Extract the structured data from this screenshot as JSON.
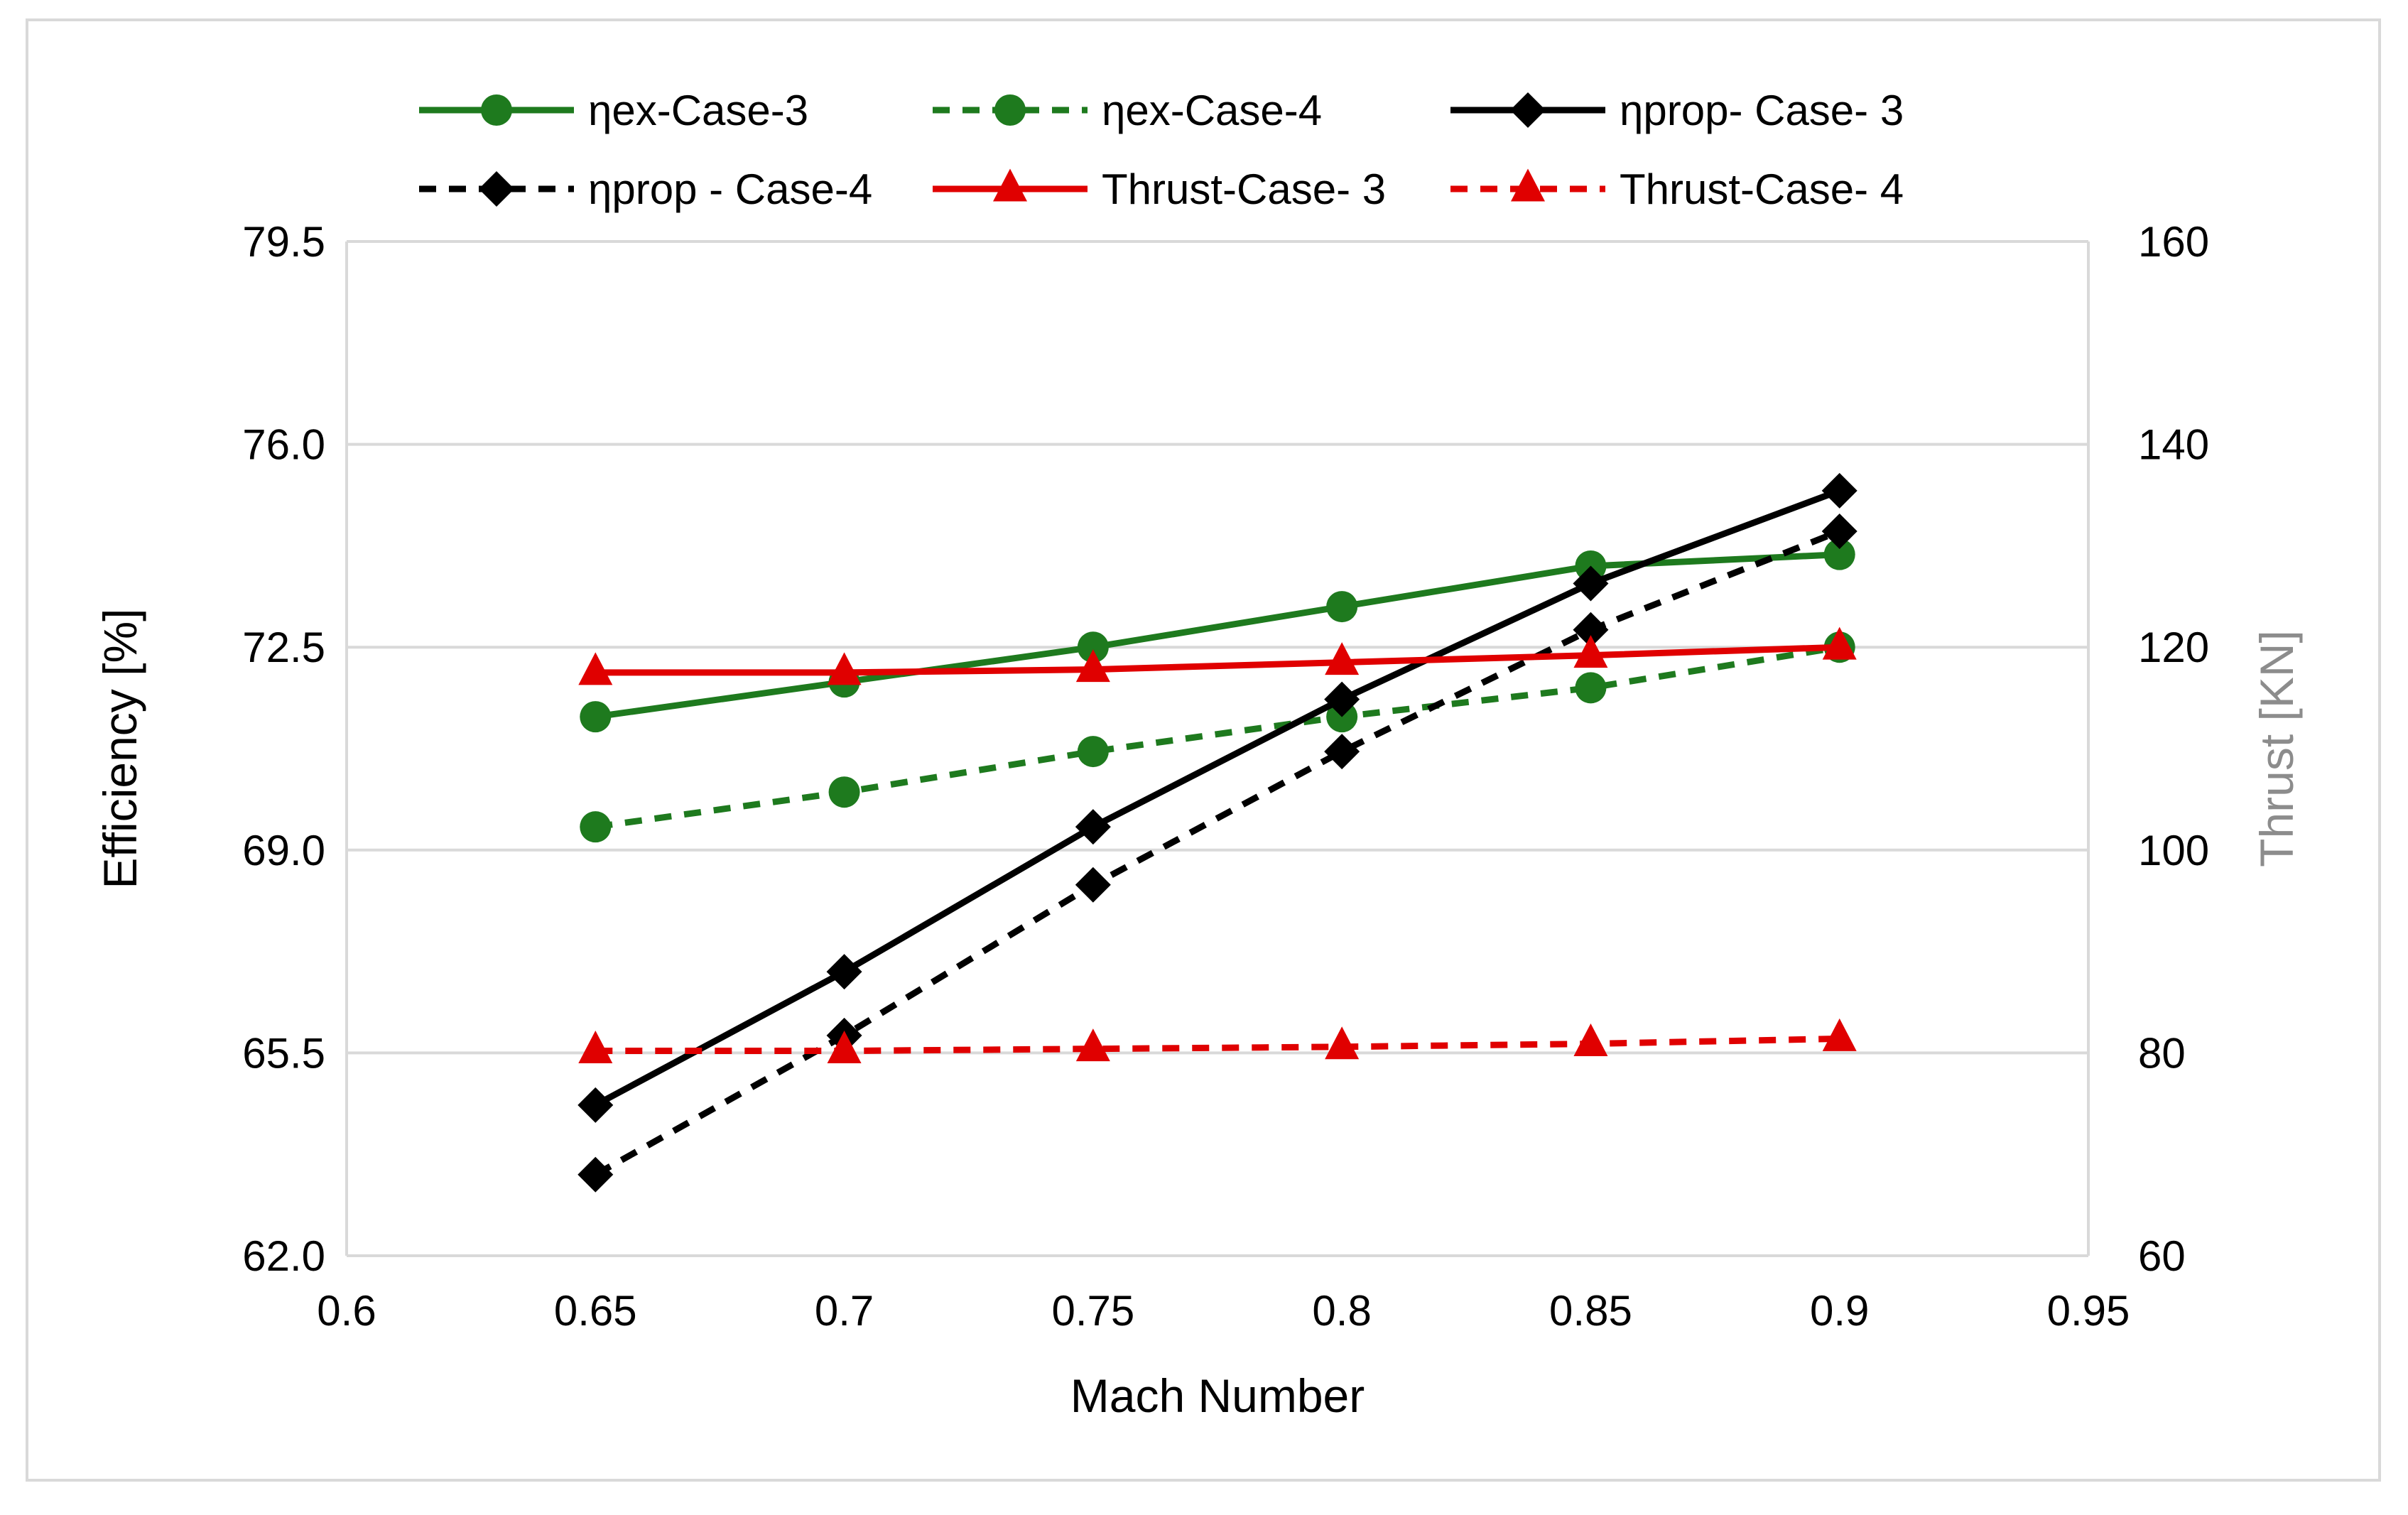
{
  "chart_data": {
    "type": "line",
    "title": "",
    "xlabel": "Mach Number",
    "ylabel": "Efficiency [%]",
    "y2label": "Thrust [KN]",
    "xlim": [
      0.6,
      0.95
    ],
    "ylim": [
      62.0,
      79.5
    ],
    "y2lim": [
      60,
      160
    ],
    "xticks": [
      "0.6",
      "0.65",
      "0.7",
      "0.75",
      "0.8",
      "0.85",
      "0.9",
      "0.95"
    ],
    "yticks": [
      "62.0",
      "65.5",
      "69.0",
      "72.5",
      "76.0",
      "79.5"
    ],
    "y2ticks": [
      "60",
      "80",
      "100",
      "120",
      "140",
      "160"
    ],
    "grid": "horizontal",
    "legend_position": "top",
    "x": [
      0.65,
      0.7,
      0.75,
      0.8,
      0.85,
      0.9
    ],
    "series": [
      {
        "name": "ηex-Case-3",
        "axis": "left",
        "color": "#1e7a1e",
        "dash": "solid",
        "marker": "circle",
        "values": [
          71.3,
          71.9,
          72.5,
          73.2,
          73.9,
          74.1
        ]
      },
      {
        "name": "ηex-Case-4",
        "axis": "left",
        "color": "#1e7a1e",
        "dash": "dashed",
        "marker": "circle",
        "values": [
          69.4,
          70.0,
          70.7,
          71.3,
          71.8,
          72.5
        ]
      },
      {
        "name": "ηprop- Case- 3",
        "axis": "left",
        "color": "#000000",
        "dash": "solid",
        "marker": "diamond",
        "values": [
          64.6,
          66.9,
          69.4,
          71.6,
          73.6,
          75.2
        ]
      },
      {
        "name": "ηprop - Case-4",
        "axis": "left",
        "color": "#000000",
        "dash": "dashed",
        "marker": "diamond",
        "values": [
          63.4,
          65.8,
          68.4,
          70.7,
          72.8,
          74.5
        ]
      },
      {
        "name": "Thrust-Case- 3",
        "axis": "right",
        "color": "#e00000",
        "dash": "solid",
        "marker": "triangle",
        "values": [
          117.5,
          117.5,
          117.8,
          118.5,
          119.2,
          120.0
        ]
      },
      {
        "name": "Thrust-Case- 4",
        "axis": "right",
        "color": "#e00000",
        "dash": "dashed",
        "marker": "triangle",
        "values": [
          80.2,
          80.2,
          80.4,
          80.6,
          80.9,
          81.4
        ]
      }
    ]
  }
}
